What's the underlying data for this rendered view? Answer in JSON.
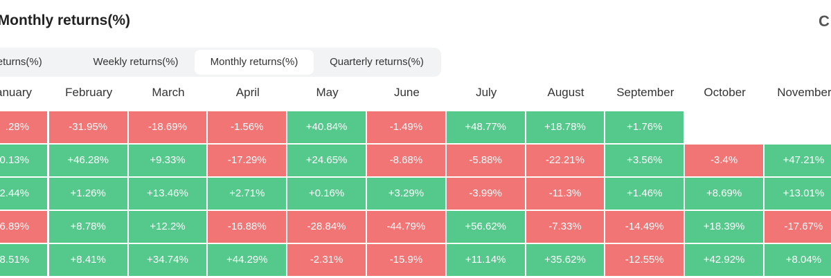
{
  "header": {
    "title": "Monthly returns(%)",
    "logo": "C"
  },
  "tabs": {
    "items": [
      "Daily returns(%)",
      "Weekly returns(%)",
      "Monthly returns(%)",
      "Quarterly returns(%)"
    ],
    "active": 2
  },
  "table": {
    "columns": [
      "January",
      "February",
      "March",
      "April",
      "May",
      "June",
      "July",
      "August",
      "September",
      "October",
      "November"
    ],
    "rows": [
      [
        ".28%",
        "-31.95%",
        "-18.69%",
        "-1.56%",
        "+40.84%",
        "-1.49%",
        "+48.77%",
        "+18.78%",
        "+1.76%",
        null,
        null
      ],
      [
        "0.13%",
        "+46.28%",
        "+9.33%",
        "-17.29%",
        "+24.65%",
        "-8.68%",
        "-5.88%",
        "-22.21%",
        "+3.56%",
        "-3.4%",
        "+47.21%"
      ],
      [
        "2.44%",
        "+1.26%",
        "+13.46%",
        "+2.71%",
        "+0.16%",
        "+3.29%",
        "-3.99%",
        "-11.3%",
        "+1.46%",
        "+8.69%",
        "+13.01%"
      ],
      [
        "6.89%",
        "+8.78%",
        "+12.2%",
        "-16.88%",
        "-28.84%",
        "-44.79%",
        "+56.62%",
        "-7.33%",
        "-14.49%",
        "+18.39%",
        "-17.67%"
      ],
      [
        "8.51%",
        "+8.41%",
        "+34.74%",
        "+44.29%",
        "-2.31%",
        "-15.9%",
        "+11.14%",
        "+35.62%",
        "-12.55%",
        "+42.92%",
        "+8.04%"
      ]
    ],
    "colors": [
      [
        "r",
        "r",
        "r",
        "r",
        "g",
        "r",
        "g",
        "g",
        "g",
        null,
        null
      ],
      [
        "g",
        "g",
        "g",
        "r",
        "g",
        "r",
        "r",
        "r",
        "g",
        "r",
        "g"
      ],
      [
        "g",
        "g",
        "g",
        "g",
        "g",
        "g",
        "r",
        "r",
        "g",
        "g",
        "g"
      ],
      [
        "r",
        "g",
        "g",
        "r",
        "r",
        "r",
        "g",
        "r",
        "r",
        "g",
        "r"
      ],
      [
        "g",
        "g",
        "g",
        "g",
        "r",
        "r",
        "g",
        "g",
        "r",
        "g",
        "g"
      ]
    ]
  },
  "palette": {
    "g": "#55c98b",
    "r": "#f27575"
  }
}
